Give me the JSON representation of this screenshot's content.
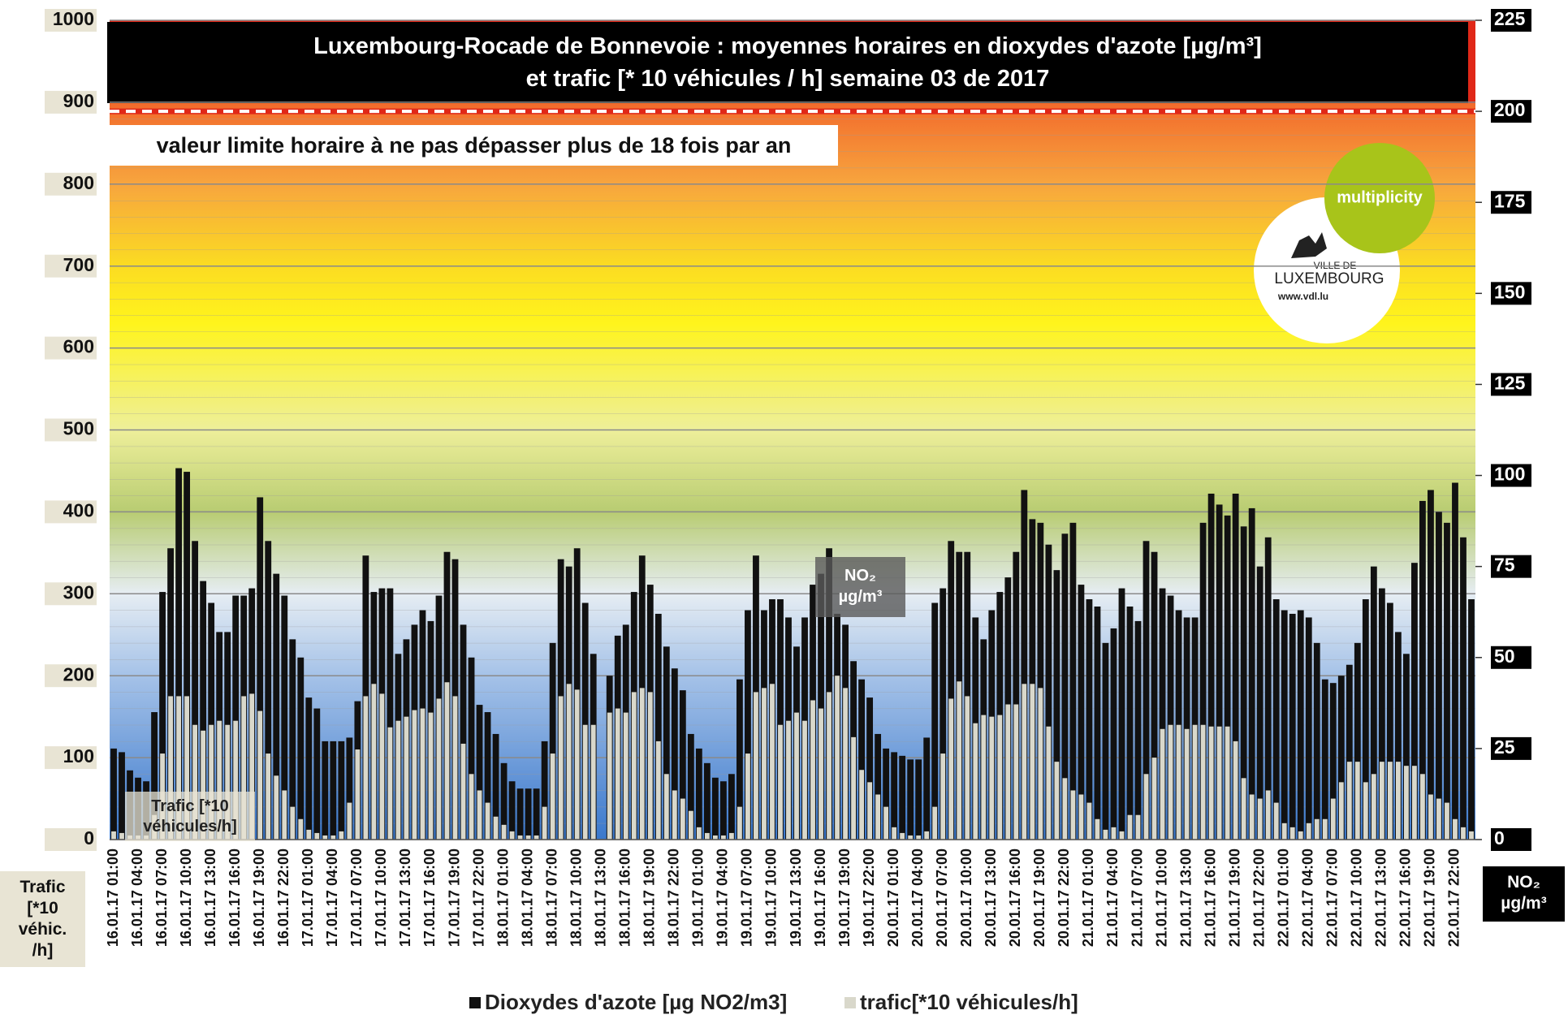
{
  "chart_data": {
    "type": "bar",
    "title": "Luxembourg-Rocade de Bonnevoie : moyennes horaires en dioxydes d'azote [µg/m³]",
    "subtitle": "et trafic [* 10 véhicules / h]  semaine 03 de 2017",
    "y_axis_label": "Trafic [*10 véhic. /h]",
    "y2_axis_label": "NO₂ µg/m³",
    "annotations": [
      "Trafic [*10 véhicules/h]",
      "NO₂ µg/m³"
    ],
    "limit_line": {
      "value": 200,
      "label": "valeur limite horaire à ne pas dépasser plus de 18 fois par an"
    },
    "logos": [
      "multiplicity",
      "VILLE DE",
      "LUXEMBOURG",
      "www.vdl.lu"
    ],
    "categories": [
      "16.01.17 01:00",
      null,
      null,
      "16.01.17 04:00",
      null,
      null,
      "16.01.17 07:00",
      null,
      null,
      "16.01.17 10:00",
      null,
      null,
      "16.01.17 13:00",
      null,
      null,
      "16.01.17 16:00",
      null,
      null,
      "16.01.17 19:00",
      null,
      null,
      "16.01.17 22:00",
      null,
      null,
      "17.01.17 01:00",
      null,
      null,
      "17.01.17 04:00",
      null,
      null,
      "17.01.17 07:00",
      null,
      null,
      "17.01.17 10:00",
      null,
      null,
      "17.01.17 13:00",
      null,
      null,
      "17.01.17 16:00",
      null,
      null,
      "17.01.17 19:00",
      null,
      null,
      "17.01.17 22:00",
      null,
      null,
      "18.01.17 01:00",
      null,
      null,
      "18.01.17 04:00",
      null,
      null,
      "18.01.17 07:00",
      null,
      null,
      "18.01.17 10:00",
      null,
      null,
      "18.01.17 13:00",
      null,
      null,
      "18.01.17 16:00",
      null,
      null,
      "18.01.17 19:00",
      null,
      null,
      "18.01.17 22:00",
      null,
      null,
      "19.01.17 01:00",
      null,
      null,
      "19.01.17 04:00",
      null,
      null,
      "19.01.17 07:00",
      null,
      null,
      "19.01.17 10:00",
      null,
      null,
      "19.01.17 13:00",
      null,
      null,
      "19.01.17 16:00",
      null,
      null,
      "19.01.17 19:00",
      null,
      null,
      "19.01.17 22:00",
      null,
      null,
      "20.01.17 01:00",
      null,
      null,
      "20.01.17 04:00",
      null,
      null,
      "20.01.17 07:00",
      null,
      null,
      "20.01.17 10:00",
      null,
      null,
      "20.01.17 13:00",
      null,
      null,
      "20.01.17 16:00",
      null,
      null,
      "20.01.17 19:00",
      null,
      null,
      "20.01.17 22:00",
      null,
      null,
      "21.01.17 01:00",
      null,
      null,
      "21.01.17 04:00",
      null,
      null,
      "21.01.17 07:00",
      null,
      null,
      "21.01.17 10:00",
      null,
      null,
      "21.01.17 13:00",
      null,
      null,
      "21.01.17 16:00",
      null,
      null,
      "21.01.17 19:00",
      null,
      null,
      "21.01.17 22:00",
      null,
      null,
      "22.01.17 01:00",
      null,
      null,
      "22.01.17 04:00",
      null,
      null,
      "22.01.17 07:00",
      null,
      null,
      "22.01.17 10:00",
      null,
      null,
      "22.01.17 13:00",
      null,
      null,
      "22.01.17 16:00",
      null,
      null,
      "22.01.17 19:00",
      null,
      null,
      "22.01.17 22:00",
      null,
      null
    ],
    "series": [
      {
        "name": "Dioxydes d'azote [µg NO2/m3]",
        "color": "#111111",
        "axis": "y2",
        "values": [
          25,
          24,
          19,
          17,
          16,
          35,
          68,
          80,
          102,
          101,
          82,
          71,
          65,
          57,
          57,
          67,
          67,
          69,
          94,
          82,
          73,
          67,
          55,
          50,
          39,
          36,
          27,
          27,
          27,
          28,
          38,
          78,
          68,
          69,
          69,
          51,
          55,
          59,
          63,
          60,
          67,
          79,
          77,
          59,
          50,
          37,
          35,
          29,
          21,
          16,
          14,
          14,
          14,
          27,
          54,
          77,
          75,
          80,
          65,
          51,
          0,
          45,
          56,
          59,
          68,
          78,
          70,
          62,
          53,
          47,
          41,
          29,
          25,
          21,
          17,
          16,
          18,
          44,
          63,
          78,
          63,
          66,
          66,
          61,
          53,
          61,
          70,
          73,
          80,
          62,
          59,
          49,
          44,
          39,
          29,
          25,
          24,
          23,
          22,
          22,
          28,
          65,
          69,
          82,
          79,
          79,
          61,
          55,
          63,
          68,
          72,
          79,
          96,
          88,
          87,
          81,
          74,
          84,
          87,
          70,
          66,
          64,
          54,
          58,
          69,
          64,
          60,
          82,
          79,
          69,
          67,
          63,
          61,
          61,
          87,
          95,
          92,
          89,
          95,
          86,
          91,
          75,
          83,
          66,
          63,
          62,
          63,
          61,
          54,
          44,
          43,
          45,
          48,
          54,
          66,
          75,
          69,
          65,
          57,
          51,
          76,
          93,
          96,
          90,
          87,
          98,
          83,
          66
        ]
      },
      {
        "name": "trafic[*10 véhicules/h]",
        "color": "#d9d8cb",
        "values": [
          10,
          8,
          5,
          5,
          5,
          30,
          105,
          175,
          175,
          175,
          140,
          133,
          140,
          145,
          140,
          145,
          175,
          178,
          157,
          105,
          78,
          60,
          40,
          25,
          12,
          8,
          5,
          5,
          10,
          45,
          110,
          175,
          190,
          178,
          137,
          145,
          150,
          158,
          160,
          155,
          172,
          192,
          175,
          117,
          80,
          60,
          45,
          28,
          18,
          10,
          5,
          5,
          5,
          40,
          105,
          175,
          190,
          183,
          140,
          140,
          0,
          155,
          160,
          155,
          180,
          185,
          180,
          120,
          80,
          60,
          50,
          35,
          15,
          8,
          5,
          5,
          8,
          40,
          105,
          180,
          185,
          190,
          140,
          145,
          155,
          145,
          170,
          160,
          180,
          200,
          185,
          125,
          85,
          70,
          55,
          40,
          15,
          8,
          5,
          5,
          10,
          40,
          105,
          172,
          193,
          175,
          142,
          152,
          150,
          152,
          165,
          165,
          190,
          190,
          185,
          138,
          95,
          75,
          60,
          55,
          45,
          25,
          12,
          15,
          10,
          30,
          30,
          80,
          100,
          135,
          140,
          140,
          135,
          140,
          140,
          138,
          138,
          138,
          120,
          75,
          55,
          50,
          60,
          45,
          20,
          15,
          10,
          20,
          25,
          25,
          50,
          70,
          95,
          95,
          70,
          80,
          95,
          95,
          95,
          90,
          90,
          80,
          55,
          50,
          45,
          25,
          15,
          10
        ]
      }
    ],
    "ylim": [
      0,
      1000
    ],
    "yticks": [
      0,
      100,
      200,
      300,
      400,
      500,
      600,
      700,
      800,
      900,
      1000
    ],
    "y2lim": [
      0,
      225
    ],
    "y2ticks": [
      0,
      25,
      50,
      75,
      100,
      125,
      150,
      175,
      200,
      225
    ],
    "grid": true
  }
}
